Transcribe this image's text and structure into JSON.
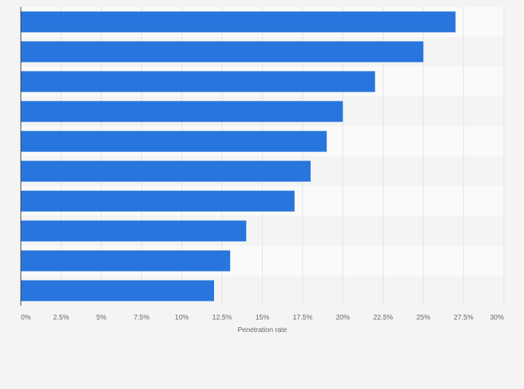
{
  "colors": {
    "page_background": "#f4f4f4",
    "band_light": "#fafafa",
    "band_dark": "#f4f4f4",
    "bar": "#2876dd",
    "grid": "#e2e2e2",
    "axis_line": "#333333",
    "tick_text": "#666666"
  },
  "chart_data": {
    "type": "bar",
    "orientation": "horizontal",
    "title": "",
    "xlabel": "Penetration rate",
    "ylabel": "",
    "categories": [
      "",
      "",
      "",
      "",
      "",
      "",
      "",
      "",
      "",
      ""
    ],
    "values": [
      27,
      25,
      22,
      20,
      19,
      18,
      17,
      14,
      13,
      12
    ],
    "xlim": [
      0,
      30
    ],
    "x_ticks": [
      0,
      2.5,
      5,
      7.5,
      10,
      12.5,
      15,
      17.5,
      20,
      22.5,
      25,
      27.5,
      30
    ],
    "x_tick_labels": [
      "0%",
      "2.5%",
      "5%",
      "7.5%",
      "10%",
      "12.5%",
      "15%",
      "17.5%",
      "20%",
      "22.5%",
      "25%",
      "27.5%",
      "30%"
    ],
    "grid": true,
    "legend": "none",
    "category_labels_visible": false
  }
}
